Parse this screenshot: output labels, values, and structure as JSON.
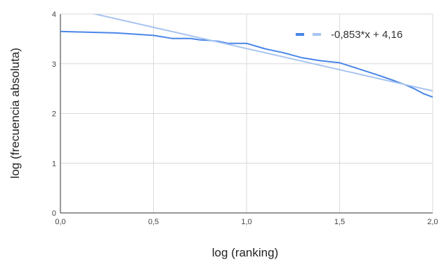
{
  "chart_data": {
    "type": "line",
    "title": "",
    "xlabel": "log (ranking)",
    "ylabel": "log (frecuencia absoluta)",
    "xlim": [
      0,
      2
    ],
    "ylim": [
      0,
      4
    ],
    "x_ticks": [
      "0,0",
      "0,5",
      "1,0",
      "1,5",
      "2,0"
    ],
    "y_ticks": [
      "0",
      "1",
      "2",
      "3",
      "4"
    ],
    "grid": true,
    "legend_position": "top-right",
    "series": [
      {
        "name": "",
        "kind": "data",
        "color": "#4a86e8",
        "x": [
          0,
          0.1,
          0.3,
          0.5,
          0.6,
          0.7,
          0.75,
          0.8,
          0.85,
          0.9,
          1.0,
          1.1,
          1.2,
          1.3,
          1.4,
          1.5,
          1.6,
          1.7,
          1.8,
          1.85,
          1.9,
          1.95,
          2.0
        ],
        "y": [
          3.65,
          3.64,
          3.62,
          3.57,
          3.51,
          3.51,
          3.48,
          3.47,
          3.45,
          3.41,
          3.41,
          3.3,
          3.22,
          3.12,
          3.06,
          3.02,
          2.9,
          2.78,
          2.65,
          2.58,
          2.5,
          2.4,
          2.33
        ]
      },
      {
        "name": "",
        "kind": "trendline",
        "color": "#a8c4f0",
        "slope": -0.853,
        "intercept": 4.16
      }
    ],
    "legend": {
      "label": "-0,853*x + 4,16",
      "swatches": [
        "#4a86e8",
        "#a8c4f0"
      ]
    }
  }
}
